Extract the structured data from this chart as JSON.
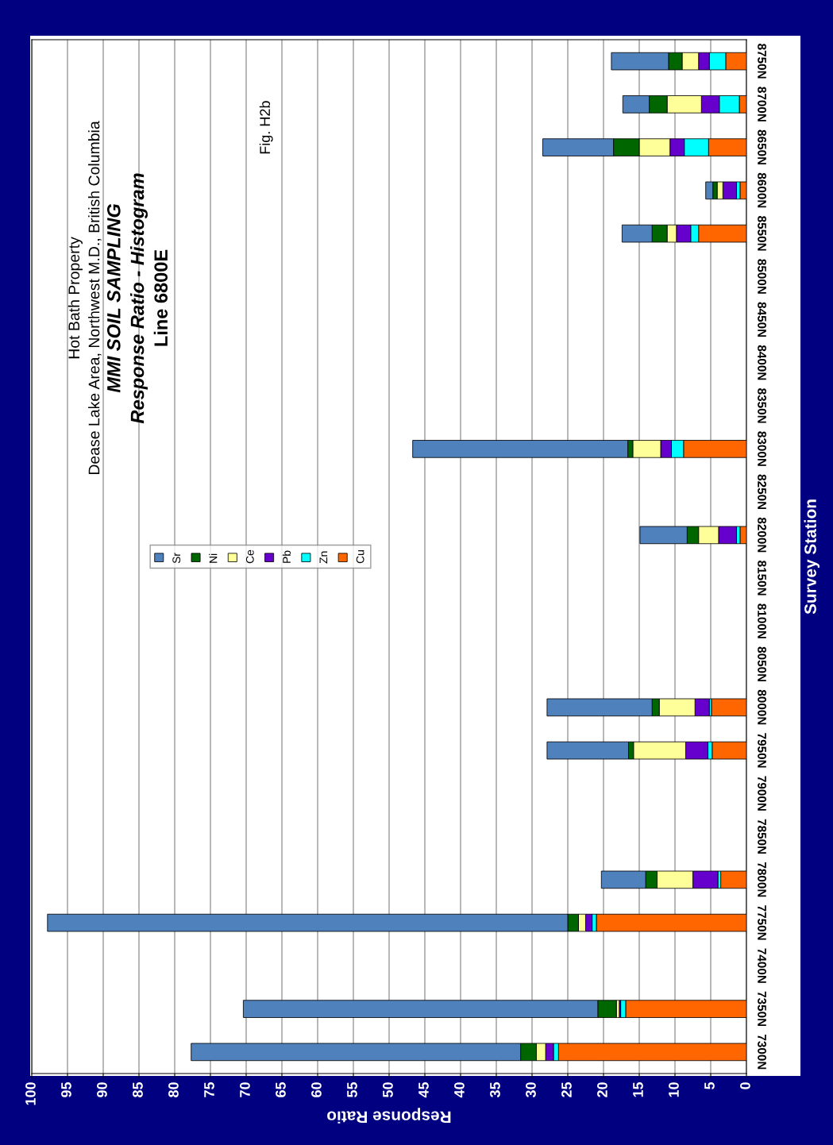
{
  "chart_data": {
    "type": "bar",
    "orientation": "horizontal",
    "stacked": true,
    "title": "Hot Bath Property",
    "subtitle": "Dease Lake Area, Northwest M.D., British Columbia",
    "annotations": [
      "MMI SOIL SAMPLING",
      "Response Ratio - Histogram",
      "Line 6800E",
      "Fig. H2b"
    ],
    "xlabel": "Response Ratio",
    "ylabel": "Survey Station",
    "categories": [
      "8750N",
      "8700N",
      "8650N",
      "8600N",
      "8550N",
      "8500N",
      "8450N",
      "8400N",
      "8350N",
      "8300N",
      "8250N",
      "8200N",
      "8150N",
      "8100N",
      "8050N",
      "8000N",
      "7950N",
      "7900N",
      "7850N",
      "7800N",
      "7750N",
      "7400N",
      "7350N",
      "7300N"
    ],
    "series": [
      {
        "name": "Cu",
        "color": "#ff6600",
        "values": [
          2.9,
          1.0,
          5.3,
          0.9,
          6.7,
          0,
          0,
          0,
          0,
          8.8,
          0,
          0.9,
          0,
          0,
          0,
          4.9,
          4.8,
          0,
          0,
          3.6,
          21.0,
          0,
          16.9,
          26.3
        ]
      },
      {
        "name": "Zn",
        "color": "#00ffff",
        "values": [
          2.3,
          2.8,
          3.4,
          0.5,
          1.1,
          0,
          0,
          0,
          0,
          1.7,
          0,
          0.5,
          0,
          0,
          0,
          0.3,
          0.6,
          0,
          0,
          0.4,
          0.6,
          0,
          0.7,
          0.7
        ]
      },
      {
        "name": "Pb",
        "color": "#6600cc",
        "values": [
          1.5,
          2.5,
          2.0,
          1.9,
          2.0,
          0,
          0,
          0,
          0,
          1.5,
          0,
          2.5,
          0,
          0,
          0,
          2.0,
          3.1,
          0,
          0,
          3.5,
          0.9,
          0,
          0.2,
          1.1
        ]
      },
      {
        "name": "Ce",
        "color": "#ffff99",
        "values": [
          2.3,
          4.8,
          4.3,
          0.8,
          1.3,
          0,
          0,
          0,
          0,
          3.9,
          0,
          2.8,
          0,
          0,
          0,
          5.0,
          7.3,
          0,
          0,
          5.0,
          1.0,
          0,
          0.4,
          1.3
        ]
      },
      {
        "name": "Ni",
        "color": "#006600",
        "values": [
          1.9,
          2.5,
          3.6,
          0.6,
          2.1,
          0,
          0,
          0,
          0,
          0.7,
          0,
          1.6,
          0,
          0,
          0,
          1.0,
          0.7,
          0,
          0,
          1.6,
          1.5,
          0,
          2.6,
          2.2
        ]
      },
      {
        "name": "Sr",
        "color": "#4f81bd",
        "values": [
          8.0,
          3.7,
          9.9,
          1.0,
          4.2,
          0,
          0,
          0,
          0,
          30.1,
          0,
          6.6,
          0,
          0,
          0,
          14.7,
          11.4,
          0,
          0,
          6.2,
          72.8,
          0,
          49.6,
          46.1
        ]
      }
    ],
    "xlim": [
      100,
      0
    ],
    "xticks": [
      100,
      95,
      90,
      85,
      80,
      75,
      70,
      65,
      60,
      55,
      50,
      45,
      40,
      35,
      30,
      25,
      20,
      15,
      10,
      5,
      0
    ],
    "grid": "x",
    "legend": "center"
  }
}
